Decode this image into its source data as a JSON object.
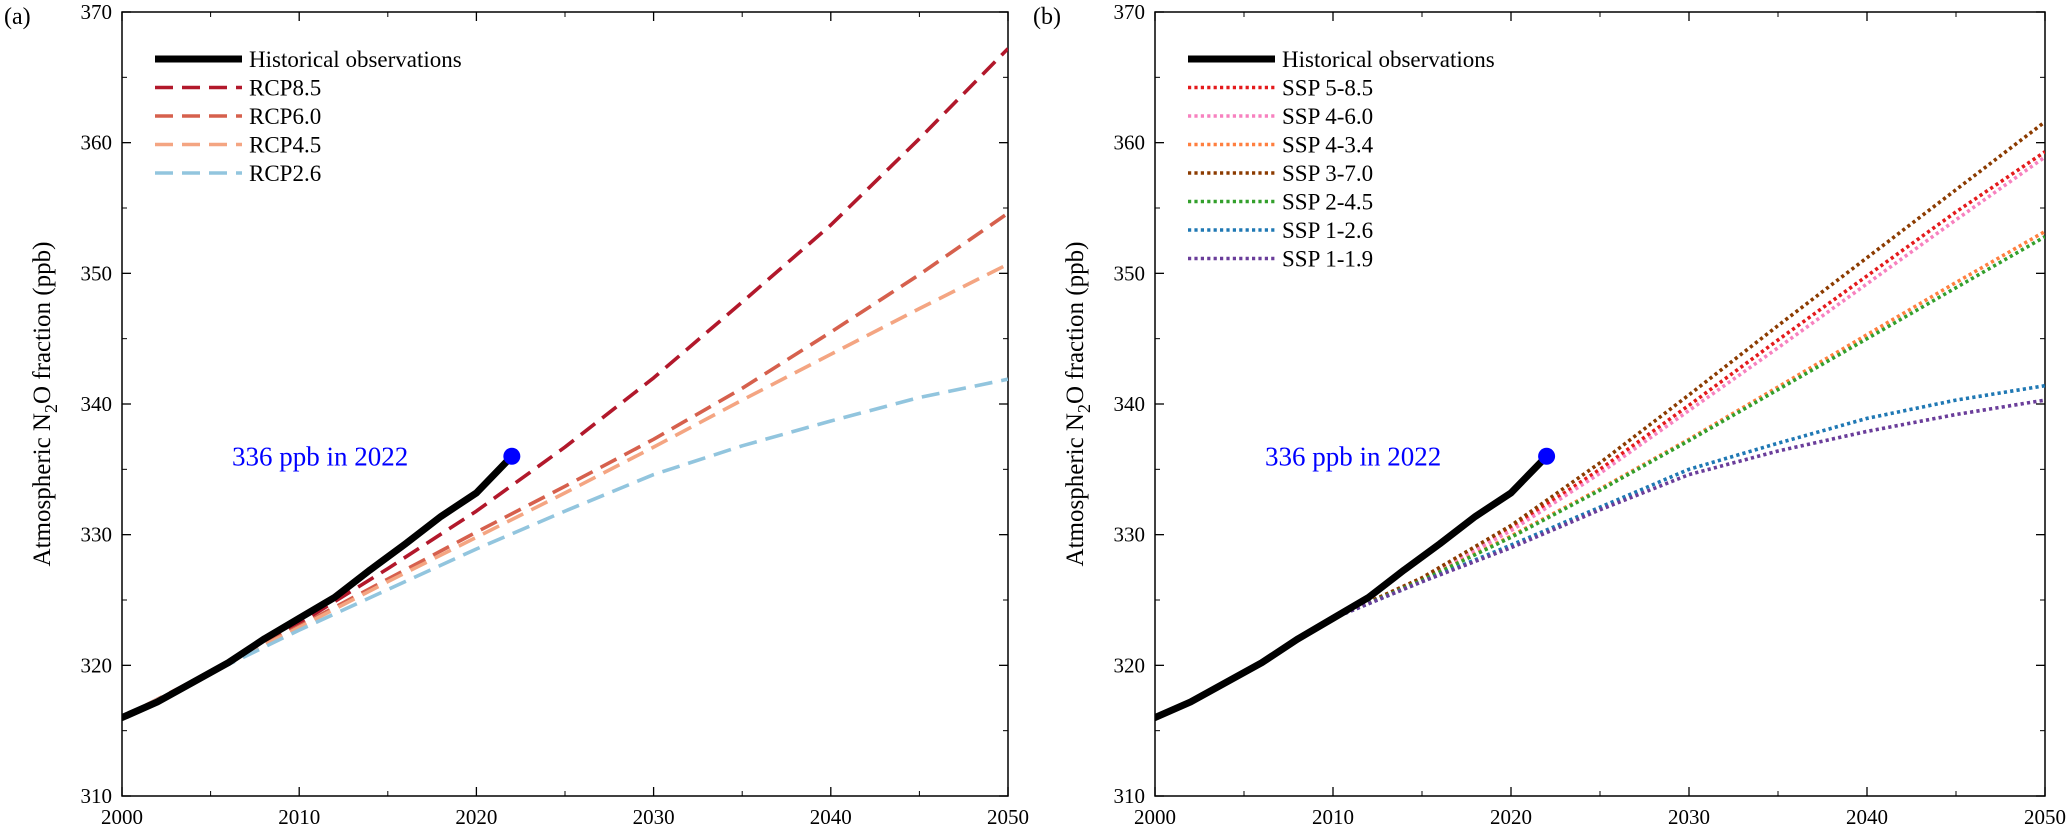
{
  "chart_data": [
    {
      "type": "line",
      "panel_label": "(a)",
      "ylabel": "Atmospheric N2O fraction (ppb)",
      "ylabel_parts": {
        "before": "Atmospheric N",
        "subscript": "2",
        "after": "O fraction (ppb)"
      },
      "xlim": [
        2000,
        2050
      ],
      "ylim": [
        310,
        370
      ],
      "xticks": [
        2000,
        2010,
        2020,
        2030,
        2040,
        2050
      ],
      "yticks": [
        310,
        320,
        330,
        340,
        350,
        360,
        370
      ],
      "grid": false,
      "legend_position": "top-left",
      "annotation": {
        "text": "336 ppb in 2022",
        "x": 2022,
        "y": 336,
        "color": "#0000ff"
      },
      "series": [
        {
          "name": "Historical observations",
          "color": "#000000",
          "style": "solid",
          "x": [
            2000,
            2002,
            2004,
            2006,
            2008,
            2010,
            2012,
            2014,
            2016,
            2018,
            2020,
            2022
          ],
          "y": [
            316.0,
            317.2,
            318.7,
            320.2,
            322.0,
            323.6,
            325.2,
            327.3,
            329.3,
            331.4,
            333.2,
            336.0
          ]
        },
        {
          "name": "RCP8.5",
          "color": "#b2182b",
          "style": "dashed",
          "x": [
            2000,
            2005,
            2010,
            2015,
            2020,
            2025,
            2030,
            2035,
            2040,
            2045,
            2050
          ],
          "y": [
            316.0,
            319.5,
            323.2,
            327.4,
            331.8,
            336.7,
            342.0,
            347.8,
            353.7,
            360.3,
            367.2
          ]
        },
        {
          "name": "RCP6.0",
          "color": "#d6604d",
          "style": "dashed",
          "x": [
            2000,
            2005,
            2010,
            2015,
            2020,
            2025,
            2030,
            2035,
            2040,
            2045,
            2050
          ],
          "y": [
            316.0,
            319.5,
            323.0,
            326.6,
            330.2,
            333.7,
            337.3,
            341.2,
            345.5,
            349.9,
            354.6
          ]
        },
        {
          "name": "RCP4.5",
          "color": "#f4a582",
          "style": "dashed",
          "x": [
            2000,
            2005,
            2010,
            2015,
            2020,
            2025,
            2030,
            2035,
            2040,
            2045,
            2050
          ],
          "y": [
            316.0,
            319.5,
            322.9,
            326.4,
            329.8,
            333.2,
            336.7,
            340.3,
            343.8,
            347.3,
            350.7
          ]
        },
        {
          "name": "RCP2.6",
          "color": "#92c5de",
          "style": "dashed",
          "x": [
            2000,
            2005,
            2010,
            2015,
            2020,
            2025,
            2030,
            2035,
            2040,
            2045,
            2050
          ],
          "y": [
            316.0,
            319.4,
            322.7,
            325.8,
            328.9,
            331.8,
            334.6,
            336.8,
            338.7,
            340.5,
            341.9
          ]
        }
      ]
    },
    {
      "type": "line",
      "panel_label": "(b)",
      "ylabel": "Atmospheric N2O fraction (ppb)",
      "ylabel_parts": {
        "before": "Atmospheric N",
        "subscript": "2",
        "after": "O fraction (ppb)"
      },
      "xlim": [
        2000,
        2050
      ],
      "ylim": [
        310,
        370
      ],
      "xticks": [
        2000,
        2010,
        2020,
        2030,
        2040,
        2050
      ],
      "yticks": [
        310,
        320,
        330,
        340,
        350,
        360,
        370
      ],
      "grid": false,
      "legend_position": "top-left",
      "annotation": {
        "text": "336 ppb in 2022",
        "x": 2022,
        "y": 336,
        "color": "#0000ff"
      },
      "series": [
        {
          "name": "Historical observations",
          "color": "#000000",
          "style": "solid",
          "x": [
            2000,
            2002,
            2004,
            2006,
            2008,
            2010,
            2012,
            2014,
            2016,
            2018,
            2020,
            2022
          ],
          "y": [
            316.0,
            317.2,
            318.7,
            320.2,
            322.0,
            323.6,
            325.2,
            327.3,
            329.3,
            331.4,
            333.2,
            336.0
          ]
        },
        {
          "name": "SSP 5-8.5",
          "color": "#e41a1c",
          "style": "dotted",
          "x": [
            2010,
            2015,
            2020,
            2025,
            2030,
            2035,
            2040,
            2045,
            2050
          ],
          "y": [
            323.6,
            326.6,
            330.5,
            335.0,
            339.9,
            344.9,
            349.8,
            354.7,
            359.3
          ]
        },
        {
          "name": "SSP 4-6.0",
          "color": "#f781bf",
          "style": "dotted",
          "x": [
            2010,
            2015,
            2020,
            2025,
            2030,
            2035,
            2040,
            2045,
            2050
          ],
          "y": [
            323.6,
            326.6,
            330.3,
            334.7,
            339.5,
            344.3,
            349.2,
            354.1,
            358.9
          ]
        },
        {
          "name": "SSP 4-3.4",
          "color": "#ff7f3f",
          "style": "dotted",
          "x": [
            2010,
            2015,
            2020,
            2025,
            2030,
            2035,
            2040,
            2045,
            2050
          ],
          "y": [
            323.6,
            326.5,
            329.9,
            333.5,
            337.3,
            341.3,
            345.3,
            349.3,
            353.2
          ]
        },
        {
          "name": "SSP 3-7.0",
          "color": "#8c3b00",
          "style": "dotted",
          "x": [
            2010,
            2015,
            2020,
            2025,
            2030,
            2035,
            2040,
            2045,
            2050
          ],
          "y": [
            323.6,
            326.7,
            330.7,
            335.5,
            340.7,
            346.0,
            351.2,
            356.4,
            361.6
          ]
        },
        {
          "name": "SSP 2-4.5",
          "color": "#33a02c",
          "style": "dotted",
          "x": [
            2010,
            2015,
            2020,
            2025,
            2030,
            2035,
            2040,
            2045,
            2050
          ],
          "y": [
            323.6,
            326.5,
            329.8,
            333.4,
            337.2,
            341.1,
            345.0,
            348.9,
            352.8
          ]
        },
        {
          "name": "SSP 1-2.6",
          "color": "#1f78b4",
          "style": "dotted",
          "x": [
            2010,
            2015,
            2020,
            2025,
            2030,
            2035,
            2040,
            2045,
            2050
          ],
          "y": [
            323.6,
            326.4,
            329.2,
            332.1,
            335.0,
            337.0,
            338.9,
            340.3,
            341.4
          ]
        },
        {
          "name": "SSP 1-1.9",
          "color": "#6a3d9a",
          "style": "dotted",
          "x": [
            2010,
            2015,
            2020,
            2025,
            2030,
            2035,
            2040,
            2045,
            2050
          ],
          "y": [
            323.6,
            326.4,
            329.0,
            331.9,
            334.6,
            336.4,
            337.9,
            339.2,
            340.3
          ]
        }
      ]
    }
  ]
}
